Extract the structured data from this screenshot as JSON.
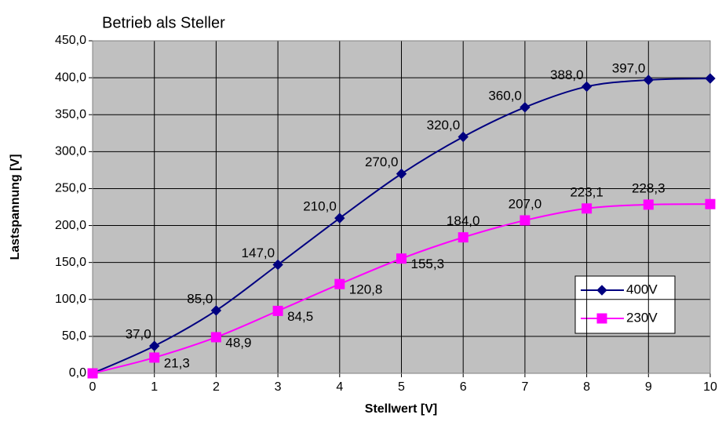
{
  "chart_data": {
    "type": "line",
    "title": "Betrieb als Steller",
    "x_label": "Stellwert [V]",
    "y_label": "Lastspannung [V]",
    "x": [
      0,
      1,
      2,
      3,
      4,
      5,
      6,
      7,
      8,
      9,
      10
    ],
    "series": [
      {
        "name": "400V",
        "color": "#000080",
        "marker": "diamond",
        "values": [
          0,
          37,
          85,
          147,
          210,
          270,
          320,
          360,
          388,
          397,
          399
        ],
        "value_labels": [
          null,
          "37,0",
          "85,0",
          "147,0",
          "210,0",
          "270,0",
          "320,0",
          "360,0",
          "388,0",
          "397,0",
          null
        ]
      },
      {
        "name": "230V",
        "color": "#ff00ff",
        "marker": "square",
        "values": [
          0,
          21.3,
          48.9,
          84.5,
          120.8,
          155.3,
          184,
          207,
          223.1,
          228.3,
          229
        ],
        "value_labels": [
          null,
          "21,3",
          "48,9",
          "84,5",
          "120,8",
          "155,3",
          "184,0",
          "207,0",
          "223,1",
          "228,3",
          null
        ]
      }
    ],
    "xlim": [
      0,
      10
    ],
    "xticks": [
      0,
      1,
      2,
      3,
      4,
      5,
      6,
      7,
      8,
      9,
      10
    ],
    "ylim": [
      0,
      450
    ],
    "yticks": [
      {
        "value": 0,
        "label": "0,0"
      },
      {
        "value": 50,
        "label": "50,0"
      },
      {
        "value": 100,
        "label": "100,0"
      },
      {
        "value": 150,
        "label": "150,0"
      },
      {
        "value": 200,
        "label": "200,0"
      },
      {
        "value": 250,
        "label": "250,0"
      },
      {
        "value": 300,
        "label": "300,0"
      },
      {
        "value": 350,
        "label": "350,0"
      },
      {
        "value": 400,
        "label": "400,0"
      },
      {
        "value": 450,
        "label": "450,0"
      }
    ],
    "grid": true,
    "legend": "right"
  }
}
